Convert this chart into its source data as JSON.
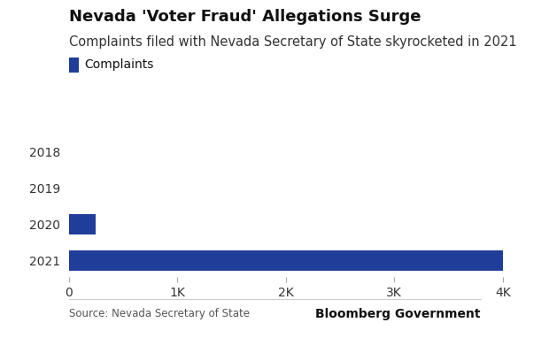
{
  "title": "Nevada 'Voter Fraud' Allegations Surge",
  "subtitle": "Complaints filed with Nevada Secretary of State skyrocketed in 2021",
  "source": "Source: Nevada Secretary of State",
  "branding": "Bloomberg Government",
  "legend_label": "Complaints",
  "years": [
    "2018",
    "2019",
    "2020",
    "2021"
  ],
  "values": [
    3,
    0,
    250,
    4000
  ],
  "bar_color": "#1f3d99",
  "xlim": [
    0,
    4300
  ],
  "xticks": [
    0,
    1000,
    2000,
    3000,
    4000
  ],
  "xtick_labels": [
    "0",
    "1K",
    "2K",
    "3K",
    "4K"
  ],
  "background_color": "#ffffff",
  "title_fontsize": 13,
  "subtitle_fontsize": 10.5,
  "tick_fontsize": 10,
  "legend_fontsize": 10,
  "source_fontsize": 8.5,
  "branding_fontsize": 10,
  "bar_height": 0.55
}
